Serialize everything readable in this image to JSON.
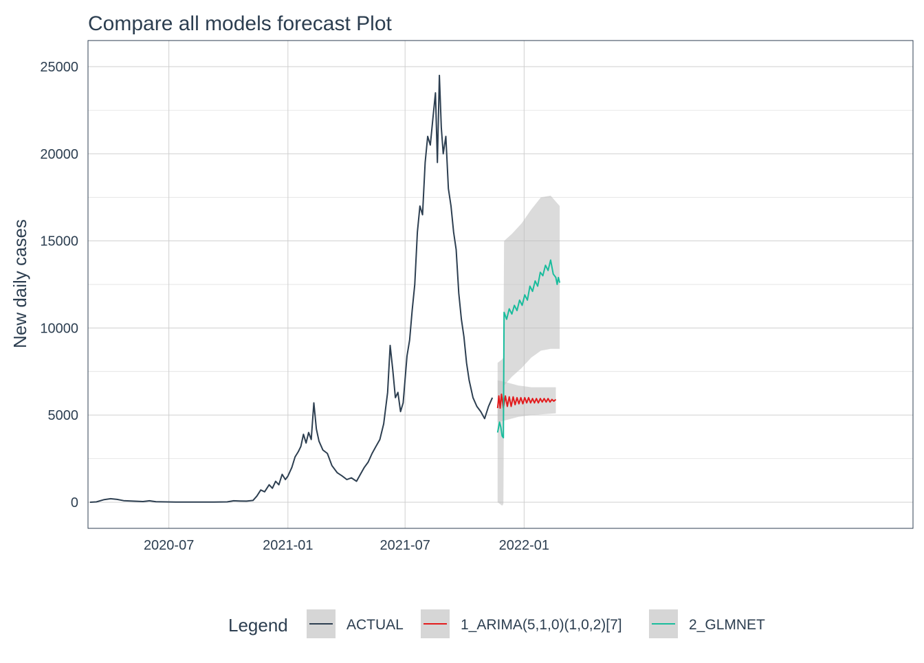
{
  "chart_data": {
    "type": "line",
    "title": "Compare all models forecast Plot",
    "xlabel": "",
    "ylabel": "New daily cases",
    "ylim": [
      -1500,
      26500
    ],
    "yticks": [
      0,
      5000,
      10000,
      15000,
      20000,
      25000
    ],
    "xlim": [
      -125,
      1150
    ],
    "x_origin_date": "2020-07-01",
    "x_unit": "days since 2020-07-01",
    "xticks": [
      {
        "label": "2020-07",
        "x": 0
      },
      {
        "label": "2021-01",
        "x": 184
      },
      {
        "label": "2021-07",
        "x": 365
      },
      {
        "label": "2022-01",
        "x": 549
      }
    ],
    "grid": true,
    "legend": {
      "title": "Legend",
      "position": "bottom",
      "entries": [
        {
          "label": "ACTUAL",
          "color": "#2C3E50"
        },
        {
          "label": "1_ARIMA(5,1,0)(1,0,2)[7]",
          "color": "#E31A1C"
        },
        {
          "label": "2_GLMNET",
          "color": "#18BC9C"
        }
      ]
    },
    "series": [
      {
        "name": "ACTUAL",
        "color": "#2C3E50",
        "points": [
          [
            -122,
            0
          ],
          [
            -112,
            20
          ],
          [
            -100,
            150
          ],
          [
            -90,
            200
          ],
          [
            -80,
            160
          ],
          [
            -70,
            90
          ],
          [
            -55,
            60
          ],
          [
            -40,
            40
          ],
          [
            -30,
            80
          ],
          [
            -20,
            30
          ],
          [
            -5,
            20
          ],
          [
            10,
            10
          ],
          [
            30,
            10
          ],
          [
            50,
            5
          ],
          [
            70,
            10
          ],
          [
            90,
            20
          ],
          [
            100,
            80
          ],
          [
            110,
            70
          ],
          [
            120,
            60
          ],
          [
            130,
            100
          ],
          [
            136,
            350
          ],
          [
            142,
            700
          ],
          [
            148,
            600
          ],
          [
            155,
            1000
          ],
          [
            160,
            800
          ],
          [
            165,
            1200
          ],
          [
            170,
            1000
          ],
          [
            175,
            1600
          ],
          [
            180,
            1300
          ],
          [
            184,
            1500
          ],
          [
            190,
            2000
          ],
          [
            195,
            2600
          ],
          [
            200,
            2900
          ],
          [
            204,
            3200
          ],
          [
            208,
            3900
          ],
          [
            212,
            3400
          ],
          [
            216,
            4000
          ],
          [
            220,
            3600
          ],
          [
            224,
            5700
          ],
          [
            228,
            4200
          ],
          [
            232,
            3500
          ],
          [
            238,
            3000
          ],
          [
            245,
            2800
          ],
          [
            252,
            2100
          ],
          [
            260,
            1700
          ],
          [
            268,
            1500
          ],
          [
            275,
            1300
          ],
          [
            282,
            1400
          ],
          [
            290,
            1200
          ],
          [
            296,
            1600
          ],
          [
            302,
            2000
          ],
          [
            308,
            2300
          ],
          [
            314,
            2800
          ],
          [
            320,
            3200
          ],
          [
            326,
            3600
          ],
          [
            332,
            4500
          ],
          [
            338,
            6300
          ],
          [
            342,
            9000
          ],
          [
            346,
            7600
          ],
          [
            350,
            6000
          ],
          [
            354,
            6300
          ],
          [
            358,
            5200
          ],
          [
            362,
            5700
          ],
          [
            368,
            8400
          ],
          [
            372,
            9300
          ],
          [
            376,
            11000
          ],
          [
            380,
            12500
          ],
          [
            384,
            15500
          ],
          [
            388,
            17000
          ],
          [
            392,
            16500
          ],
          [
            396,
            19500
          ],
          [
            400,
            21000
          ],
          [
            404,
            20500
          ],
          [
            408,
            22000
          ],
          [
            412,
            23500
          ],
          [
            415,
            19500
          ],
          [
            418,
            24500
          ],
          [
            421,
            21500
          ],
          [
            424,
            20000
          ],
          [
            428,
            21000
          ],
          [
            432,
            18000
          ],
          [
            436,
            17000
          ],
          [
            440,
            15500
          ],
          [
            444,
            14500
          ],
          [
            448,
            12000
          ],
          [
            452,
            10500
          ],
          [
            456,
            9500
          ],
          [
            460,
            8000
          ],
          [
            464,
            7000
          ],
          [
            470,
            6000
          ],
          [
            476,
            5500
          ],
          [
            482,
            5200
          ],
          [
            488,
            4800
          ],
          [
            494,
            5500
          ],
          [
            500,
            6000
          ]
        ]
      },
      {
        "name": "1_ARIMA(5,1,0)(1,0,2)[7]",
        "color": "#E31A1C",
        "points": [
          [
            508,
            5400
          ],
          [
            510,
            6100
          ],
          [
            512,
            5400
          ],
          [
            514,
            6200
          ],
          [
            517,
            5400
          ],
          [
            520,
            6100
          ],
          [
            523,
            5500
          ],
          [
            526,
            6050
          ],
          [
            529,
            5500
          ],
          [
            532,
            6050
          ],
          [
            535,
            5600
          ],
          [
            538,
            6000
          ],
          [
            541,
            5650
          ],
          [
            544,
            6000
          ],
          [
            547,
            5650
          ],
          [
            550,
            6000
          ],
          [
            553,
            5700
          ],
          [
            556,
            6000
          ],
          [
            559,
            5700
          ],
          [
            562,
            5950
          ],
          [
            565,
            5700
          ],
          [
            568,
            5950
          ],
          [
            571,
            5700
          ],
          [
            574,
            5950
          ],
          [
            577,
            5750
          ],
          [
            580,
            5950
          ],
          [
            583,
            5750
          ],
          [
            586,
            5950
          ],
          [
            589,
            5750
          ],
          [
            592,
            5900
          ],
          [
            595,
            5800
          ],
          [
            598,
            5900
          ]
        ],
        "band": [
          [
            508,
            4600,
            7000
          ],
          [
            520,
            4700,
            6900
          ],
          [
            540,
            4900,
            6700
          ],
          [
            560,
            5000,
            6600
          ],
          [
            580,
            5050,
            6600
          ],
          [
            598,
            5100,
            6600
          ]
        ]
      },
      {
        "name": "2_GLMNET",
        "color": "#18BC9C",
        "points": [
          [
            508,
            4000
          ],
          [
            511,
            4600
          ],
          [
            513,
            4300
          ],
          [
            515,
            3800
          ],
          [
            517,
            3700
          ],
          [
            518,
            10900
          ],
          [
            522,
            10500
          ],
          [
            526,
            11100
          ],
          [
            530,
            10800
          ],
          [
            534,
            11300
          ],
          [
            538,
            11000
          ],
          [
            542,
            11600
          ],
          [
            546,
            11300
          ],
          [
            550,
            11900
          ],
          [
            554,
            11600
          ],
          [
            558,
            12400
          ],
          [
            562,
            12100
          ],
          [
            566,
            12700
          ],
          [
            570,
            12400
          ],
          [
            574,
            13200
          ],
          [
            578,
            13000
          ],
          [
            582,
            13600
          ],
          [
            586,
            13300
          ],
          [
            590,
            13900
          ],
          [
            594,
            13100
          ],
          [
            598,
            12900
          ],
          [
            600,
            12500
          ],
          [
            602,
            12900
          ],
          [
            604,
            12600
          ]
        ],
        "band": [
          [
            508,
            0,
            8000
          ],
          [
            515,
            -200,
            8200
          ],
          [
            517,
            -100,
            8300
          ],
          [
            518,
            6700,
            15000
          ],
          [
            530,
            7200,
            15400
          ],
          [
            545,
            7700,
            16000
          ],
          [
            560,
            8300,
            16800
          ],
          [
            575,
            8700,
            17500
          ],
          [
            590,
            8800,
            17600
          ],
          [
            604,
            8800,
            17000
          ]
        ]
      }
    ]
  }
}
